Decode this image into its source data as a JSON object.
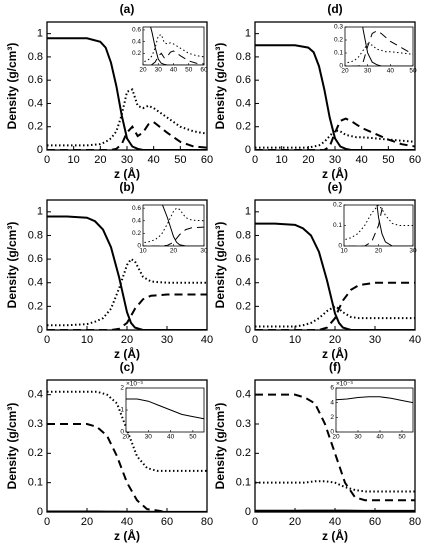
{
  "chart_data": [
    {
      "type": "line",
      "title": "(a)",
      "xlabel": "z (Å)",
      "ylabel": "Density (g/cm³)",
      "x": [
        0,
        5,
        10,
        15,
        20,
        22,
        24,
        26,
        28,
        30,
        32,
        34,
        36,
        38,
        40,
        45,
        50,
        55,
        60
      ],
      "series": [
        {
          "color": "#000000",
          "style": "solid",
          "values": [
            0.96,
            0.96,
            0.96,
            0.96,
            0.93,
            0.88,
            0.75,
            0.55,
            0.3,
            0.1,
            0.03,
            0.01,
            0,
            0,
            0,
            0,
            0,
            0,
            0
          ]
        },
        {
          "color": "#000000",
          "style": "dotted",
          "values": [
            0.04,
            0.04,
            0.04,
            0.04,
            0.05,
            0.07,
            0.1,
            0.16,
            0.3,
            0.5,
            0.52,
            0.38,
            0.36,
            0.38,
            0.36,
            0.28,
            0.2,
            0.16,
            0.14
          ]
        },
        {
          "color": "#000000",
          "style": "dashed",
          "values": [
            0,
            0,
            0,
            0,
            0,
            0,
            0,
            0.01,
            0.05,
            0.15,
            0.2,
            0.12,
            0.15,
            0.22,
            0.24,
            0.15,
            0.07,
            0.03,
            0.02
          ]
        }
      ],
      "xlim": [
        0,
        60
      ],
      "xticks": [
        0,
        10,
        20,
        30,
        40,
        50,
        60
      ],
      "ylim": [
        0,
        1.1
      ],
      "yticks": [
        0,
        0.2,
        0.4,
        0.6,
        0.8,
        1
      ],
      "inset": {
        "xlim": [
          20,
          60
        ],
        "xticks": [
          20,
          30,
          40,
          50,
          60
        ],
        "ylim": [
          0,
          0.65
        ],
        "yticks": [
          0.2,
          0.4,
          0.6
        ]
      }
    },
    {
      "type": "line",
      "title": "(d)",
      "xlabel": "z (Å)",
      "ylabel": "Density (g/cm³)",
      "x": [
        0,
        5,
        10,
        15,
        20,
        22,
        24,
        26,
        28,
        30,
        32,
        34,
        36,
        38,
        40,
        45,
        50,
        55,
        60
      ],
      "series": [
        {
          "color": "#000000",
          "style": "solid",
          "values": [
            0.9,
            0.9,
            0.9,
            0.9,
            0.88,
            0.84,
            0.72,
            0.52,
            0.28,
            0.1,
            0.03,
            0.01,
            0,
            0,
            0,
            0,
            0,
            0,
            0
          ]
        },
        {
          "color": "#000000",
          "style": "dotted",
          "values": [
            0.02,
            0.02,
            0.02,
            0.02,
            0.02,
            0.03,
            0.04,
            0.07,
            0.12,
            0.17,
            0.16,
            0.13,
            0.12,
            0.11,
            0.11,
            0.1,
            0.09,
            0.08,
            0.07
          ]
        },
        {
          "color": "#000000",
          "style": "dashed",
          "values": [
            0,
            0,
            0,
            0,
            0,
            0,
            0,
            0,
            0.03,
            0.15,
            0.25,
            0.27,
            0.25,
            0.22,
            0.19,
            0.14,
            0.09,
            0.05,
            0.03
          ]
        }
      ],
      "xlim": [
        0,
        60
      ],
      "xticks": [
        0,
        10,
        20,
        30,
        40,
        50,
        60
      ],
      "ylim": [
        0,
        1.1
      ],
      "yticks": [
        0,
        0.2,
        0.4,
        0.6,
        0.8,
        1
      ],
      "inset": {
        "xlim": [
          20,
          50
        ],
        "xticks": [
          20,
          30,
          40,
          50
        ],
        "ylim": [
          0,
          0.3
        ],
        "yticks": [
          0,
          0.1,
          0.2,
          0.3
        ]
      }
    },
    {
      "type": "line",
      "title": "(b)",
      "xlabel": "z (Å)",
      "ylabel": "Density (g/cm³)",
      "x": [
        0,
        5,
        10,
        12,
        14,
        16,
        18,
        20,
        21,
        22,
        24,
        26,
        30,
        35,
        40
      ],
      "series": [
        {
          "color": "#000000",
          "style": "solid",
          "values": [
            0.96,
            0.96,
            0.95,
            0.92,
            0.85,
            0.7,
            0.45,
            0.15,
            0.06,
            0.02,
            0,
            0,
            0,
            0,
            0
          ]
        },
        {
          "color": "#000000",
          "style": "dotted",
          "values": [
            0.04,
            0.04,
            0.05,
            0.07,
            0.1,
            0.18,
            0.35,
            0.55,
            0.6,
            0.58,
            0.45,
            0.41,
            0.4,
            0.4,
            0.4
          ]
        },
        {
          "color": "#000000",
          "style": "dashed",
          "values": [
            0,
            0,
            0,
            0,
            0,
            0,
            0.01,
            0.06,
            0.12,
            0.18,
            0.26,
            0.29,
            0.3,
            0.3,
            0.3
          ]
        }
      ],
      "xlim": [
        0,
        40
      ],
      "xticks": [
        0,
        10,
        20,
        30,
        40
      ],
      "ylim": [
        0,
        1.1
      ],
      "yticks": [
        0,
        0.2,
        0.4,
        0.6,
        0.8,
        1
      ],
      "inset": {
        "xlim": [
          10,
          30
        ],
        "xticks": [
          10,
          20,
          30
        ],
        "ylim": [
          0,
          0.65
        ],
        "yticks": [
          0,
          0.2,
          0.4,
          0.6
        ]
      }
    },
    {
      "type": "line",
      "title": "(e)",
      "xlabel": "z (Å)",
      "ylabel": "Density (g/cm³)",
      "x": [
        0,
        5,
        10,
        12,
        14,
        16,
        18,
        20,
        21,
        22,
        24,
        26,
        30,
        35,
        40
      ],
      "series": [
        {
          "color": "#000000",
          "style": "solid",
          "values": [
            0.9,
            0.9,
            0.89,
            0.86,
            0.8,
            0.66,
            0.42,
            0.14,
            0.06,
            0.02,
            0,
            0,
            0,
            0,
            0
          ]
        },
        {
          "color": "#000000",
          "style": "dotted",
          "values": [
            0.03,
            0.03,
            0.03,
            0.04,
            0.06,
            0.1,
            0.16,
            0.2,
            0.18,
            0.15,
            0.11,
            0.1,
            0.1,
            0.1,
            0.1
          ]
        },
        {
          "color": "#000000",
          "style": "dashed",
          "values": [
            0,
            0,
            0,
            0,
            0,
            0,
            0.02,
            0.1,
            0.18,
            0.25,
            0.34,
            0.38,
            0.4,
            0.4,
            0.4
          ]
        }
      ],
      "xlim": [
        0,
        40
      ],
      "xticks": [
        0,
        10,
        20,
        30,
        40
      ],
      "ylim": [
        0,
        1.1
      ],
      "yticks": [
        0,
        0.2,
        0.4,
        0.6,
        0.8,
        1
      ],
      "inset": {
        "xlim": [
          10,
          30
        ],
        "xticks": [
          10,
          20,
          30
        ],
        "ylim": [
          0,
          0.2
        ],
        "yticks": [
          0,
          0.1,
          0.2
        ]
      }
    },
    {
      "type": "line",
      "title": "(c)",
      "xlabel": "z (Å)",
      "ylabel": "Density (g/cm³)",
      "x": [
        0,
        10,
        20,
        25,
        30,
        35,
        40,
        45,
        50,
        55,
        60,
        70,
        80
      ],
      "series": [
        {
          "color": "#000000",
          "style": "solid",
          "values": [
            0.0015,
            0.0015,
            0.0015,
            0.0015,
            0.0014,
            0.0012,
            0.001,
            0.0008,
            0.0007,
            0.0006,
            0.0006,
            0.0006,
            0.0006
          ]
        },
        {
          "color": "#000000",
          "style": "dotted",
          "values": [
            0.41,
            0.41,
            0.41,
            0.41,
            0.4,
            0.37,
            0.28,
            0.19,
            0.15,
            0.14,
            0.14,
            0.14,
            0.14
          ]
        },
        {
          "color": "#000000",
          "style": "dashed",
          "values": [
            0.3,
            0.3,
            0.3,
            0.29,
            0.26,
            0.19,
            0.1,
            0.04,
            0.01,
            0.005,
            0,
            0,
            0
          ]
        }
      ],
      "xlim": [
        0,
        80
      ],
      "xticks": [
        0,
        20,
        40,
        60,
        80
      ],
      "ylim": [
        0,
        0.45
      ],
      "yticks": [
        0,
        0.1,
        0.2,
        0.3,
        0.4
      ],
      "inset": {
        "xlim": [
          20,
          55
        ],
        "xticks": [
          20,
          30,
          40,
          50
        ],
        "ylim": [
          0,
          0.002
        ],
        "exponent_label": "×10⁻³",
        "yticks": [
          0,
          {
            "value": 0.001,
            "label": "1"
          },
          {
            "value": 0.002,
            "label": "2"
          }
        ]
      }
    },
    {
      "type": "line",
      "title": "(f)",
      "xlabel": "z (Å)",
      "ylabel": "Density (g/cm³)",
      "x": [
        0,
        10,
        20,
        25,
        30,
        35,
        40,
        45,
        50,
        55,
        60,
        70,
        80
      ],
      "series": [
        {
          "color": "#000000",
          "style": "solid",
          "values": [
            0.0042,
            0.0042,
            0.0044,
            0.0045,
            0.0047,
            0.0048,
            0.0048,
            0.0046,
            0.0043,
            0.004,
            0.004,
            0.004,
            0.004
          ]
        },
        {
          "color": "#000000",
          "style": "dotted",
          "values": [
            0.1,
            0.1,
            0.1,
            0.1,
            0.105,
            0.105,
            0.1,
            0.085,
            0.075,
            0.07,
            0.07,
            0.07,
            0.07
          ]
        },
        {
          "color": "#000000",
          "style": "dashed",
          "values": [
            0.4,
            0.4,
            0.4,
            0.39,
            0.37,
            0.3,
            0.2,
            0.1,
            0.05,
            0.04,
            0.04,
            0.04,
            0.04
          ]
        }
      ],
      "xlim": [
        0,
        80
      ],
      "xticks": [
        0,
        20,
        40,
        60,
        80
      ],
      "ylim": [
        0,
        0.45
      ],
      "yticks": [
        0,
        0.1,
        0.2,
        0.3,
        0.4
      ],
      "inset": {
        "xlim": [
          20,
          55
        ],
        "xticks": [
          20,
          30,
          40,
          50
        ],
        "ylim": [
          0,
          0.006
        ],
        "exponent_label": "×10⁻³",
        "yticks": [
          0,
          {
            "value": 0.002,
            "label": "2"
          },
          {
            "value": 0.004,
            "label": "4"
          },
          {
            "value": 0.006,
            "label": "6"
          }
        ]
      }
    }
  ]
}
